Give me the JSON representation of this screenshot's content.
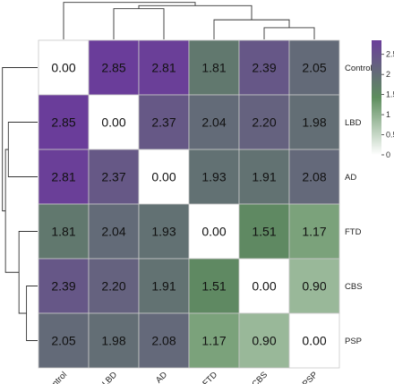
{
  "chart_data": {
    "type": "heatmap",
    "title": "",
    "xlabel": "",
    "ylabel": "",
    "rows": [
      "Control",
      "LBD",
      "AD",
      "FTD",
      "CBS",
      "PSP"
    ],
    "columns": [
      "Control",
      "LBD",
      "AD",
      "FTD",
      "CBS",
      "PSP"
    ],
    "values": [
      [
        0.0,
        2.85,
        2.81,
        1.81,
        2.39,
        2.05
      ],
      [
        2.85,
        0.0,
        2.37,
        2.04,
        2.2,
        1.98
      ],
      [
        2.81,
        2.37,
        0.0,
        1.93,
        1.91,
        2.08
      ],
      [
        1.81,
        2.04,
        1.93,
        0.0,
        1.51,
        1.17
      ],
      [
        2.39,
        2.2,
        1.91,
        1.51,
        0.0,
        0.9
      ],
      [
        2.05,
        1.98,
        2.08,
        1.17,
        0.9,
        0.0
      ]
    ],
    "value_labels": [
      [
        "0.00",
        "2.85",
        "2.81",
        "1.81",
        "2.39",
        "2.05"
      ],
      [
        "2.85",
        "0.00",
        "2.37",
        "2.04",
        "2.20",
        "1.98"
      ],
      [
        "2.81",
        "2.37",
        "0.00",
        "1.93",
        "1.91",
        "2.08"
      ],
      [
        "1.81",
        "2.04",
        "1.93",
        "0.00",
        "1.51",
        "1.17"
      ],
      [
        "2.39",
        "2.20",
        "1.91",
        "1.51",
        "0.00",
        "0.90"
      ],
      [
        "2.05",
        "1.98",
        "2.08",
        "1.17",
        "0.90",
        "0.00"
      ]
    ],
    "color_scale": {
      "min": 0,
      "max": 2.85,
      "stops": [
        "#ffffff",
        "#5e8e5e",
        "#6a3d9a"
      ],
      "ticks": [
        0,
        0.5,
        1,
        1.5,
        2,
        2.5
      ],
      "tick_labels": [
        "0",
        "0.5",
        "1",
        "1.5",
        "2",
        "2.5"
      ]
    },
    "dendrogram": {
      "leaves": [
        "Control",
        "LBD",
        "AD",
        "FTD",
        "CBS",
        "PSP"
      ],
      "merges": [
        {
          "a": "CBS",
          "b": "PSP",
          "height": 0.9
        },
        {
          "a": "FTD",
          "b": "CBS+PSP",
          "height": 1.51
        },
        {
          "a": "LBD",
          "b": "AD",
          "height": 2.37
        },
        {
          "a": "LBD+AD",
          "b": "FTD+CBS+PSP",
          "height": 2.6
        },
        {
          "a": "Control",
          "b": "rest",
          "height": 2.85
        }
      ]
    }
  }
}
